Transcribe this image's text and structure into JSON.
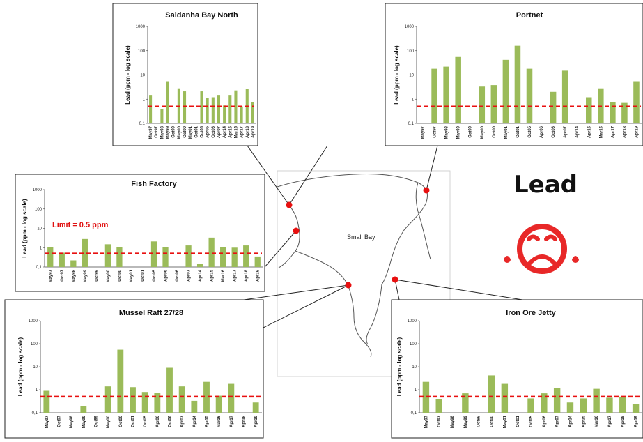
{
  "headline": "Lead",
  "bay_label": "Small Bay",
  "limit_label": "Limit = 0.5 ppm",
  "colors": {
    "bar": "#9bbb59",
    "limit": "#e81010",
    "site": "#e81010",
    "face": "#e82828"
  },
  "icon": "sad-face-icon",
  "chart_data": [
    {
      "type": "bar",
      "title": "Saldanha Bay North",
      "ylabel": "Lead (ppm - log scale)",
      "yscale": "log",
      "ylim": [
        0.1,
        1000
      ],
      "yticks": [
        "0,1",
        "1",
        "10",
        "100",
        "1000"
      ],
      "limit": 0.5,
      "categories": [
        "May97",
        "Oct97",
        "May98",
        "May99",
        "Oct99",
        "May00",
        "Oct00",
        "May01",
        "Oct01",
        "Oct05",
        "Apr06",
        "Oct06",
        "Apr07",
        "Apr14",
        "Apr15",
        "Mar16",
        "Apr17",
        "Apr18",
        "Apr19"
      ],
      "values": [
        1.5,
        null,
        0.4,
        5.5,
        null,
        2.8,
        2.1,
        null,
        null,
        2.1,
        1.1,
        1.2,
        1.5,
        0.55,
        1.5,
        2.3,
        0.5,
        2.6,
        0.75
      ]
    },
    {
      "type": "bar",
      "title": "Portnet",
      "ylabel": "Lead (ppm - log scale)",
      "yscale": "log",
      "ylim": [
        0.1,
        1000
      ],
      "yticks": [
        "0,1",
        "1",
        "10",
        "100",
        "1000"
      ],
      "limit": 0.5,
      "categories": [
        "May97",
        "Oct97",
        "May98",
        "May99",
        "Oct99",
        "May00",
        "Oct00",
        "May01",
        "Oct01",
        "Oct05",
        "Apr06",
        "Oct06",
        "Apr07",
        "Apr14",
        "Apr15",
        "Mar16",
        "Apr17",
        "Apr18",
        "Apr19"
      ],
      "values": [
        null,
        18,
        22,
        55,
        null,
        3.3,
        3.8,
        42,
        160,
        18,
        null,
        2.0,
        15,
        null,
        1.2,
        2.8,
        0.75,
        0.7,
        5.5
      ]
    },
    {
      "type": "bar",
      "title": "Fish Factory",
      "ylabel": "Lead (ppm - log scale)",
      "yscale": "log",
      "ylim": [
        0.1,
        1000
      ],
      "yticks": [
        "0,1",
        "1",
        "10",
        "100",
        "1000"
      ],
      "limit": 0.5,
      "categories": [
        "May97",
        "Oct97",
        "May98",
        "May99",
        "Oct99",
        "May00",
        "Oct00",
        "May01",
        "Oct01",
        "Oct05",
        "Apr06",
        "Oct06",
        "Apr07",
        "Apr14",
        "Apr15",
        "Mar16",
        "Apr17",
        "Apr18",
        "Apr19"
      ],
      "values": [
        1.1,
        0.55,
        0.22,
        2.8,
        null,
        1.5,
        1.1,
        null,
        null,
        2.1,
        1.1,
        null,
        1.3,
        0.14,
        3.3,
        1.1,
        1.0,
        1.3,
        0.35
      ]
    },
    {
      "type": "bar",
      "title": "Mussel Raft 27/28",
      "ylabel": "Lead (ppm - log scale)",
      "yscale": "log",
      "ylim": [
        0.1,
        1000
      ],
      "yticks": [
        "0,1",
        "1",
        "10",
        "100",
        "1000"
      ],
      "limit": 0.5,
      "categories": [
        "May97",
        "Oct97",
        "May98",
        "May99",
        "Oct99",
        "May00",
        "Oct00",
        "Oct01",
        "Oct05",
        "Apr06",
        "Oct06",
        "Apr07",
        "Apr14",
        "Apr15",
        "Mar16",
        "Apr17",
        "Apr18",
        "Apr19"
      ],
      "values": [
        0.9,
        null,
        null,
        0.2,
        null,
        1.4,
        55,
        1.3,
        0.8,
        0.75,
        9,
        1.4,
        0.33,
        2.2,
        0.55,
        1.8,
        null,
        0.28
      ]
    },
    {
      "type": "bar",
      "title": "Iron Ore Jetty",
      "ylabel": "Lead (ppm - log scale)",
      "yscale": "log",
      "ylim": [
        0.1,
        1000
      ],
      "yticks": [
        "0,1",
        "1",
        "10",
        "100",
        "1000"
      ],
      "limit": 0.5,
      "categories": [
        "May97",
        "Oct97",
        "May98",
        "May99",
        "Oct99",
        "Oct00",
        "May01",
        "Oct01",
        "Oct05",
        "Apr06",
        "Apr07",
        "Apr14",
        "Apr15",
        "Mar16",
        "Apr17",
        "Apr18",
        "Apr19"
      ],
      "values": [
        2.2,
        0.38,
        null,
        0.7,
        null,
        4.2,
        1.8,
        null,
        0.42,
        0.7,
        1.2,
        0.28,
        0.42,
        1.1,
        0.45,
        0.5,
        0.24
      ]
    }
  ]
}
